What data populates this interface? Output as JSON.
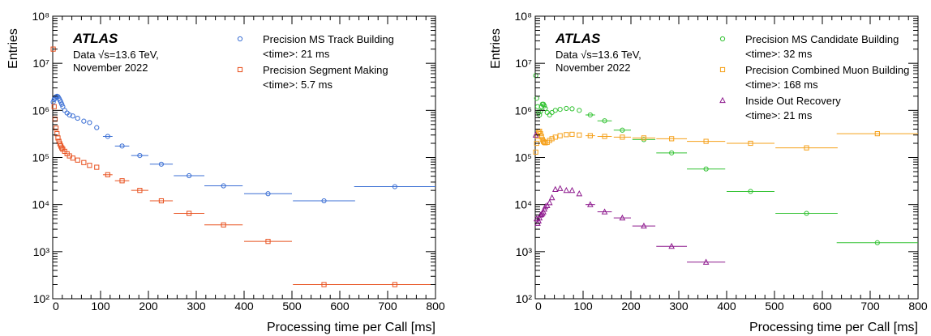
{
  "chart_data": [
    {
      "type": "scatter",
      "yscale": "log",
      "xlabel": "Processing time per Call [ms]",
      "ylabel": "Entries",
      "xlim": [
        0,
        800
      ],
      "ylim": [
        100,
        100000000
      ],
      "x_ticks": [
        "0",
        "100",
        "200",
        "300",
        "400",
        "500",
        "600",
        "700",
        "800"
      ],
      "y_ticks": [
        "10^2",
        "10^3",
        "10^4",
        "10^5",
        "10^6",
        "10^7",
        "10^8"
      ],
      "experiment_label": "ATLAS",
      "data_label": "Data √s=13.6 TeV,",
      "period_label": "November 2022",
      "legend_position": "top-right",
      "series": [
        {
          "name": "Precision MS Track Building",
          "stat": "<time>: 21 ms",
          "marker": "circle",
          "color": "#3b6fd4",
          "points": [
            {
              "x": 1,
              "y": 1500000
            },
            {
              "x": 3,
              "y": 1700000
            },
            {
              "x": 5,
              "y": 1850000
            },
            {
              "x": 7,
              "y": 1950000
            },
            {
              "x": 9,
              "y": 2000000
            },
            {
              "x": 11,
              "y": 1950000
            },
            {
              "x": 13,
              "y": 1800000
            },
            {
              "x": 15,
              "y": 1650000
            },
            {
              "x": 17,
              "y": 1500000
            },
            {
              "x": 19,
              "y": 1350000
            },
            {
              "x": 21,
              "y": 1200000
            },
            {
              "x": 25,
              "y": 1000000
            },
            {
              "x": 30,
              "y": 880000
            },
            {
              "x": 35,
              "y": 800000
            },
            {
              "x": 42,
              "y": 760000
            },
            {
              "x": 52,
              "y": 680000
            },
            {
              "x": 65,
              "y": 590000
            },
            {
              "x": 77,
              "y": 550000
            },
            {
              "x": 92,
              "y": 430000
            },
            {
              "x": 115,
              "y": 280000,
              "xerr": 10
            },
            {
              "x": 145,
              "y": 175000,
              "xerr": 15
            },
            {
              "x": 182,
              "y": 110000,
              "xerr": 18
            },
            {
              "x": 227,
              "y": 72000,
              "xerr": 24
            },
            {
              "x": 285,
              "y": 41000,
              "xerr": 32
            },
            {
              "x": 357,
              "y": 25000,
              "xerr": 40
            },
            {
              "x": 450,
              "y": 17000,
              "xerr": 50
            },
            {
              "x": 567,
              "y": 12000,
              "xerr": 65
            },
            {
              "x": 715,
              "y": 24000,
              "xerr": 85
            }
          ]
        },
        {
          "name": "Precision Segment Making",
          "stat": "<time>: 5.7 ms",
          "marker": "square",
          "color": "#e8511f",
          "points": [
            {
              "x": 1,
              "y": 20000000
            },
            {
              "x": 3,
              "y": 1200000
            },
            {
              "x": 5,
              "y": 650000
            },
            {
              "x": 7,
              "y": 420000
            },
            {
              "x": 9,
              "y": 320000
            },
            {
              "x": 11,
              "y": 260000
            },
            {
              "x": 13,
              "y": 220000
            },
            {
              "x": 15,
              "y": 195000
            },
            {
              "x": 17,
              "y": 175000
            },
            {
              "x": 19,
              "y": 160000
            },
            {
              "x": 21,
              "y": 150000
            },
            {
              "x": 25,
              "y": 135000
            },
            {
              "x": 30,
              "y": 120000
            },
            {
              "x": 35,
              "y": 108000
            },
            {
              "x": 42,
              "y": 97000
            },
            {
              "x": 52,
              "y": 88000
            },
            {
              "x": 65,
              "y": 78000
            },
            {
              "x": 77,
              "y": 68000
            },
            {
              "x": 92,
              "y": 62000
            },
            {
              "x": 115,
              "y": 43000,
              "xerr": 10
            },
            {
              "x": 145,
              "y": 32000,
              "xerr": 15
            },
            {
              "x": 182,
              "y": 20000,
              "xerr": 18
            },
            {
              "x": 227,
              "y": 12000,
              "xerr": 24
            },
            {
              "x": 285,
              "y": 6500,
              "xerr": 32
            },
            {
              "x": 357,
              "y": 3700,
              "xerr": 40
            },
            {
              "x": 450,
              "y": 1650,
              "xerr": 50
            },
            {
              "x": 567,
              "y": 200,
              "xerr": 65
            },
            {
              "x": 715,
              "y": 200,
              "xerr": 85
            }
          ]
        }
      ]
    },
    {
      "type": "scatter",
      "yscale": "log",
      "xlabel": "Processing time per Call [ms]",
      "ylabel": "Entries",
      "xlim": [
        0,
        800
      ],
      "ylim": [
        100,
        100000000
      ],
      "x_ticks": [
        "0",
        "100",
        "200",
        "300",
        "400",
        "500",
        "600",
        "700",
        "800"
      ],
      "y_ticks": [
        "10^2",
        "10^3",
        "10^4",
        "10^5",
        "10^6",
        "10^7",
        "10^8"
      ],
      "experiment_label": "ATLAS",
      "data_label": "Data √s=13.6 TeV,",
      "period_label": "November 2022",
      "legend_position": "top-right",
      "series": [
        {
          "name": "Precision MS Candidate Building",
          "stat": "<time>: 32 ms",
          "marker": "circle",
          "color": "#33c233",
          "points": [
            {
              "x": 1,
              "y": 5500000
            },
            {
              "x": 3,
              "y": 1800000
            },
            {
              "x": 5,
              "y": 1200000
            },
            {
              "x": 7,
              "y": 900000
            },
            {
              "x": 9,
              "y": 800000
            },
            {
              "x": 11,
              "y": 950000
            },
            {
              "x": 13,
              "y": 1200000
            },
            {
              "x": 15,
              "y": 1350000
            },
            {
              "x": 17,
              "y": 1350000
            },
            {
              "x": 19,
              "y": 1250000
            },
            {
              "x": 21,
              "y": 1100000
            },
            {
              "x": 25,
              "y": 900000
            },
            {
              "x": 30,
              "y": 800000
            },
            {
              "x": 35,
              "y": 900000
            },
            {
              "x": 42,
              "y": 1000000
            },
            {
              "x": 52,
              "y": 1050000
            },
            {
              "x": 65,
              "y": 1100000
            },
            {
              "x": 77,
              "y": 1080000
            },
            {
              "x": 92,
              "y": 1000000
            },
            {
              "x": 115,
              "y": 800000,
              "xerr": 10
            },
            {
              "x": 145,
              "y": 600000,
              "xerr": 15
            },
            {
              "x": 182,
              "y": 380000,
              "xerr": 18
            },
            {
              "x": 227,
              "y": 240000,
              "xerr": 24
            },
            {
              "x": 285,
              "y": 125000,
              "xerr": 32
            },
            {
              "x": 357,
              "y": 57000,
              "xerr": 40
            },
            {
              "x": 450,
              "y": 19000,
              "xerr": 50
            },
            {
              "x": 567,
              "y": 6500,
              "xerr": 65
            },
            {
              "x": 715,
              "y": 1550,
              "xerr": 85
            }
          ]
        },
        {
          "name": "Precision Combined Muon Building",
          "stat": "<time>: 168 ms",
          "marker": "square",
          "color": "#f5a01a",
          "points": [
            {
              "x": 1,
              "y": 130000
            },
            {
              "x": 3,
              "y": 200000
            },
            {
              "x": 5,
              "y": 280000
            },
            {
              "x": 7,
              "y": 340000
            },
            {
              "x": 9,
              "y": 360000
            },
            {
              "x": 11,
              "y": 320000
            },
            {
              "x": 13,
              "y": 280000
            },
            {
              "x": 15,
              "y": 240000
            },
            {
              "x": 17,
              "y": 220000
            },
            {
              "x": 19,
              "y": 210000
            },
            {
              "x": 21,
              "y": 205000
            },
            {
              "x": 25,
              "y": 210000
            },
            {
              "x": 30,
              "y": 230000
            },
            {
              "x": 35,
              "y": 250000
            },
            {
              "x": 42,
              "y": 270000
            },
            {
              "x": 52,
              "y": 290000
            },
            {
              "x": 65,
              "y": 305000
            },
            {
              "x": 77,
              "y": 310000
            },
            {
              "x": 92,
              "y": 300000
            },
            {
              "x": 115,
              "y": 290000,
              "xerr": 10
            },
            {
              "x": 145,
              "y": 280000,
              "xerr": 15
            },
            {
              "x": 182,
              "y": 270000,
              "xerr": 18
            },
            {
              "x": 227,
              "y": 260000,
              "xerr": 24
            },
            {
              "x": 285,
              "y": 250000,
              "xerr": 32
            },
            {
              "x": 357,
              "y": 220000,
              "xerr": 40
            },
            {
              "x": 450,
              "y": 200000,
              "xerr": 50
            },
            {
              "x": 567,
              "y": 160000,
              "xerr": 65
            },
            {
              "x": 715,
              "y": 320000,
              "xerr": 85
            }
          ]
        },
        {
          "name": "Inside Out Recovery",
          "stat": "<time>: 21 ms",
          "marker": "triangle",
          "color": "#8e1a8e",
          "points": [
            {
              "x": 1,
              "y": 300000
            },
            {
              "x": 3,
              "y": 5000
            },
            {
              "x": 5,
              "y": 4000
            },
            {
              "x": 7,
              "y": 4500
            },
            {
              "x": 9,
              "y": 5200
            },
            {
              "x": 11,
              "y": 6000
            },
            {
              "x": 13,
              "y": 6200
            },
            {
              "x": 15,
              "y": 6500
            },
            {
              "x": 17,
              "y": 7000
            },
            {
              "x": 19,
              "y": 8000
            },
            {
              "x": 21,
              "y": 9000
            },
            {
              "x": 25,
              "y": 9500
            },
            {
              "x": 30,
              "y": 11000
            },
            {
              "x": 35,
              "y": 14000
            },
            {
              "x": 42,
              "y": 21000
            },
            {
              "x": 52,
              "y": 22000
            },
            {
              "x": 65,
              "y": 20000
            },
            {
              "x": 77,
              "y": 20000
            },
            {
              "x": 92,
              "y": 17000
            },
            {
              "x": 115,
              "y": 10000,
              "xerr": 10
            },
            {
              "x": 145,
              "y": 7000,
              "xerr": 15
            },
            {
              "x": 182,
              "y": 5200,
              "xerr": 18
            },
            {
              "x": 227,
              "y": 3500,
              "xerr": 24
            },
            {
              "x": 285,
              "y": 1300,
              "xerr": 32
            },
            {
              "x": 357,
              "y": 600,
              "xerr": 40
            }
          ]
        }
      ]
    }
  ]
}
